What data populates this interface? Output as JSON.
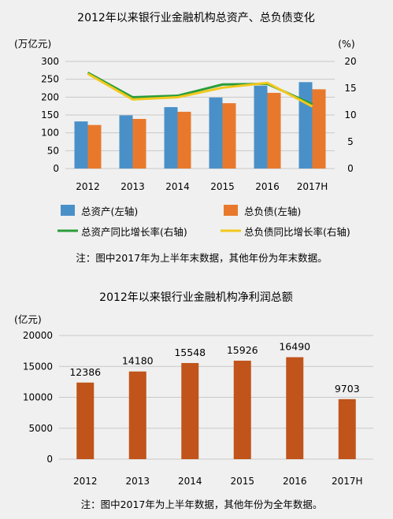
{
  "chart_data": [
    {
      "type": "bar",
      "title": "2012年以来银行业金融机构总资产、总负债变化",
      "left_unit_label": "(万亿元)",
      "right_unit_label": "(%)",
      "categories": [
        "2012",
        "2013",
        "2014",
        "2015",
        "2016",
        "2017H"
      ],
      "series": [
        {
          "name": "总资产(左轴)",
          "kind": "bar",
          "axis": "left",
          "color": "#4a90c8",
          "values": [
            132,
            149,
            172,
            199,
            232,
            242
          ]
        },
        {
          "name": "总负债(左轴)",
          "kind": "bar",
          "axis": "left",
          "color": "#e8792c",
          "values": [
            122,
            139,
            159,
            183,
            212,
            222
          ]
        },
        {
          "name": "总资产同比增长率(右轴)",
          "kind": "line",
          "axis": "right",
          "color": "#2a9d3a",
          "values": [
            17.9,
            13.3,
            13.6,
            15.7,
            15.8,
            12.0
          ]
        },
        {
          "name": "总负债同比增长率(右轴)",
          "kind": "line",
          "axis": "right",
          "color": "#f2c81d",
          "values": [
            17.7,
            12.9,
            13.3,
            15.1,
            16.0,
            11.6
          ]
        }
      ],
      "left_ticks": [
        0,
        50,
        100,
        150,
        200,
        250,
        300
      ],
      "right_ticks": [
        0,
        5,
        10,
        15,
        20
      ],
      "ylim_left": [
        0,
        300
      ],
      "ylim_right": [
        0,
        20
      ],
      "grid": true,
      "legend": "bottom",
      "note": "注：图中2017年为上半年末数据，其他年份为年末数据。"
    },
    {
      "type": "bar",
      "title": "2012年以来银行业金融机构净利润总额",
      "left_unit_label": "(亿元)",
      "categories": [
        "2012",
        "2013",
        "2014",
        "2015",
        "2016",
        "2017H"
      ],
      "series": [
        {
          "name": "",
          "kind": "bar",
          "color": "#c0541a",
          "values": [
            12386,
            14180,
            15548,
            15926,
            16490,
            9703
          ]
        }
      ],
      "left_ticks": [
        0,
        5000,
        10000,
        15000,
        20000
      ],
      "ylim_left": [
        0,
        20000
      ],
      "grid": true,
      "note": "注：图中2017年为上半年数据，其他年份为全年数据。"
    }
  ]
}
